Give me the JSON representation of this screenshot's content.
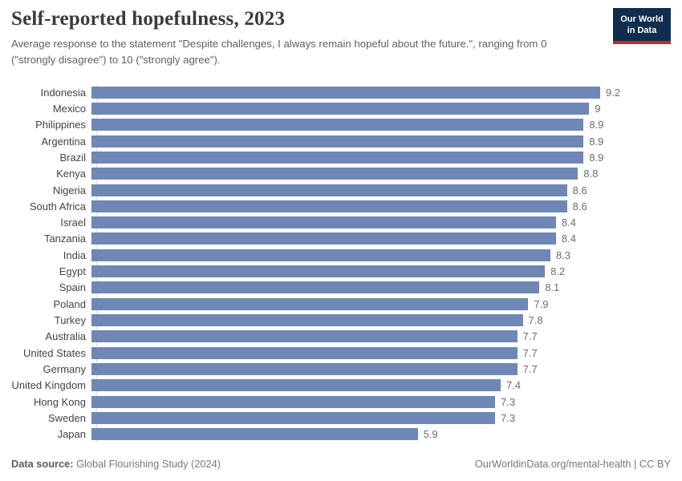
{
  "header": {
    "title": "Self-reported hopefulness, 2023",
    "subtitle": "Average response to the statement \"Despite challenges, I always remain hopeful about the future.\", ranging from 0 (\"strongly disagree\") to 10 (\"strongly agree\").",
    "logo": {
      "line1": "Our World",
      "line2": "in Data"
    }
  },
  "chart_data": {
    "type": "bar",
    "orientation": "horizontal",
    "title": "Self-reported hopefulness, 2023",
    "categories": [
      "Indonesia",
      "Mexico",
      "Philippines",
      "Argentina",
      "Brazil",
      "Kenya",
      "Nigeria",
      "South Africa",
      "Israel",
      "Tanzania",
      "India",
      "Egypt",
      "Spain",
      "Poland",
      "Turkey",
      "Australia",
      "United States",
      "Germany",
      "United Kingdom",
      "Hong Kong",
      "Sweden",
      "Japan"
    ],
    "values": [
      9.2,
      9,
      8.9,
      8.9,
      8.9,
      8.8,
      8.6,
      8.6,
      8.4,
      8.4,
      8.3,
      8.2,
      8.1,
      7.9,
      7.8,
      7.7,
      7.7,
      7.7,
      7.4,
      7.3,
      7.3,
      5.9
    ],
    "value_labels": [
      "9.2",
      "9",
      "8.9",
      "8.9",
      "8.9",
      "8.8",
      "8.6",
      "8.6",
      "8.4",
      "8.4",
      "8.3",
      "8.2",
      "8.1",
      "7.9",
      "7.8",
      "7.7",
      "7.7",
      "7.7",
      "7.4",
      "7.3",
      "7.3",
      "5.9"
    ],
    "xlabel": "",
    "ylabel": "",
    "xlim": [
      0,
      9.2
    ],
    "grid": false,
    "legend": "none",
    "bar_color": "#6e87b4",
    "axis_line_color": "#dcdcdc"
  },
  "footer": {
    "source_label": "Data source:",
    "source_value": " Global Flourishing Study (2024)",
    "attribution": "OurWorldinData.org/mental-health | CC BY"
  }
}
